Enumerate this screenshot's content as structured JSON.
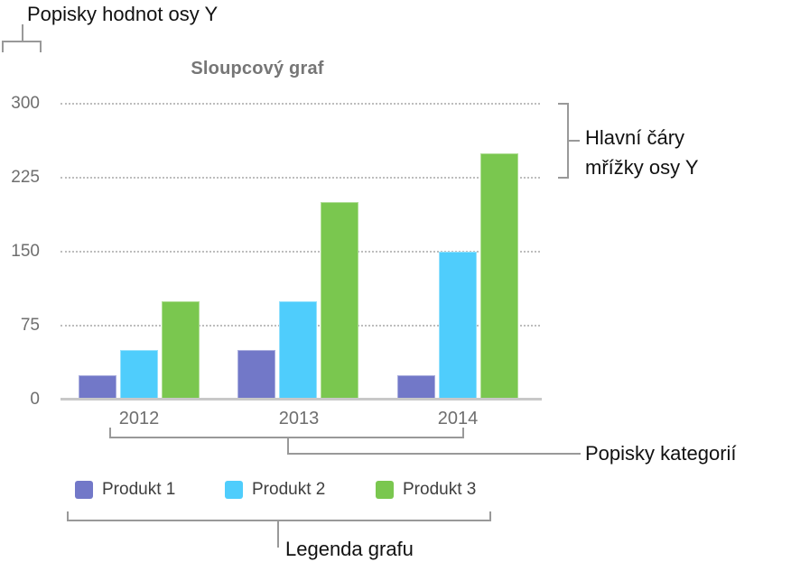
{
  "annotations": {
    "y_value_labels": "Popisky hodnot osy Y",
    "y_gridlines_line1": "Hlavní čáry",
    "y_gridlines_line2": "mřížky osy Y",
    "category_labels": "Popisky kategorií",
    "chart_legend": "Legenda grafu"
  },
  "chart_data": {
    "type": "bar",
    "title": "Sloupcový graf",
    "categories": [
      "2012",
      "2013",
      "2014"
    ],
    "series": [
      {
        "name": "Produkt 1",
        "color": "#7278C8",
        "values": [
          25,
          50,
          25
        ]
      },
      {
        "name": "Produkt 2",
        "color": "#4FCDFC",
        "values": [
          50,
          100,
          150
        ]
      },
      {
        "name": "Produkt 3",
        "color": "#7AC74F",
        "values": [
          100,
          200,
          250
        ]
      }
    ],
    "y_ticks": [
      0,
      75,
      150,
      225,
      300
    ],
    "ylim": [
      0,
      300
    ],
    "xlabel": "",
    "ylabel": "",
    "grid": "horizontal-dotted",
    "legend_position": "bottom"
  },
  "colors": {
    "gridline": "#BDBDBD",
    "axis_line": "#C8C8C8",
    "axis_text": "#6E6E6E",
    "title_text": "#767676",
    "legend_text": "#3F3F3F",
    "callout_line": "#999999",
    "callout_text": "#111111"
  }
}
